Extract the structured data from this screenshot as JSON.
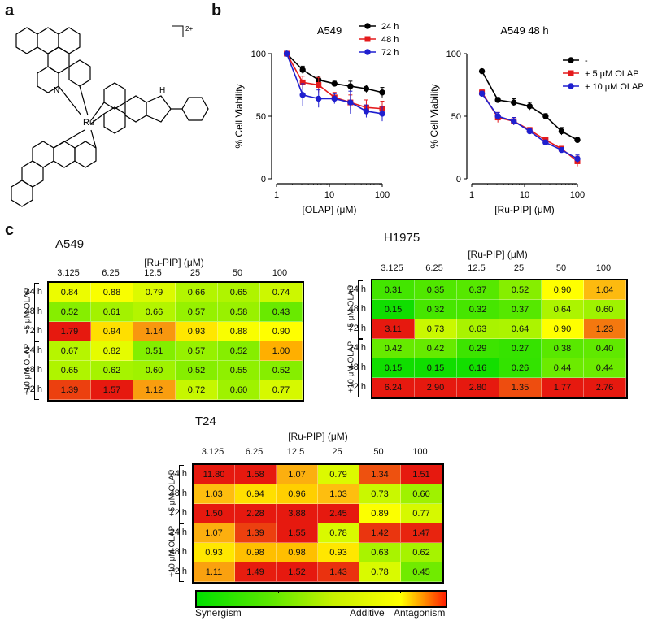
{
  "panel_labels": {
    "a": "a",
    "b": "b",
    "c": "c"
  },
  "structure": {
    "charge": "2+",
    "ru": "Ru",
    "nh": "H",
    "n": "N"
  },
  "colorbar": {
    "left": "Synergism",
    "mid": "Additive",
    "right": "Antagonism"
  },
  "chart_data": [
    {
      "type": "line",
      "title": "A549",
      "xlabel": "[OLAP] (μM)",
      "ylabel": "% Cell Viability",
      "xscale": "log",
      "xlim": [
        1,
        100
      ],
      "ylim": [
        0,
        100
      ],
      "xticks": [
        "1",
        "10",
        "100"
      ],
      "yticks": [
        "0",
        "50",
        "100"
      ],
      "x": [
        1.5625,
        3.125,
        6.25,
        12.5,
        25,
        50,
        100
      ],
      "legend_position": "top-right",
      "series": [
        {
          "name": "24 h",
          "color": "#000000",
          "marker": "circle",
          "values": [
            100,
            87,
            79,
            76,
            74,
            72,
            69
          ],
          "err": [
            1,
            3,
            3,
            2,
            4,
            3,
            4
          ]
        },
        {
          "name": "48 h",
          "color": "#e41a1c",
          "marker": "square",
          "values": [
            100,
            77,
            75,
            65,
            61,
            57,
            56
          ],
          "err": [
            1,
            5,
            6,
            4,
            6,
            6,
            6
          ]
        },
        {
          "name": "72 h",
          "color": "#1f1fcf",
          "marker": "circle",
          "values": [
            100,
            67,
            64,
            64,
            61,
            54,
            52
          ],
          "err": [
            1,
            9,
            7,
            4,
            9,
            5,
            6
          ]
        }
      ]
    },
    {
      "type": "line",
      "title": "A549 48 h",
      "xlabel": "[Ru-PIP] (μM)",
      "ylabel": "% Cell Viability",
      "xscale": "log",
      "xlim": [
        1,
        100
      ],
      "ylim": [
        0,
        100
      ],
      "xticks": [
        "1",
        "10",
        "100"
      ],
      "yticks": [
        "0",
        "50",
        "100"
      ],
      "x": [
        1.5625,
        3.125,
        6.25,
        12.5,
        25,
        50,
        100
      ],
      "legend_position": "top-right",
      "series": [
        {
          "name": "-",
          "color": "#000000",
          "marker": "circle",
          "values": [
            86,
            63,
            61,
            58,
            50,
            38,
            31
          ],
          "err": [
            1,
            2,
            3,
            3,
            2,
            3,
            2
          ]
        },
        {
          "name": "+ 5 μM OLAP",
          "color": "#e41a1c",
          "marker": "square",
          "values": [
            69,
            49,
            46,
            39,
            31,
            24,
            14
          ],
          "err": [
            2,
            4,
            3,
            2,
            2,
            2,
            4
          ]
        },
        {
          "name": "+ 10 μM OLAP",
          "color": "#1f1fcf",
          "marker": "circle",
          "values": [
            68,
            50,
            46,
            38,
            29,
            23,
            16
          ],
          "err": [
            2,
            3,
            3,
            2,
            2,
            2,
            3
          ]
        }
      ]
    },
    {
      "type": "heatmap",
      "title": "A549",
      "xlabel": "[Ru-PIP] (μM)",
      "columns": [
        "3.125",
        "6.25",
        "12.5",
        "25",
        "50",
        "100"
      ],
      "rows": [
        "24 h",
        "48 h",
        "72 h",
        "24 h",
        "48 h",
        "72 h"
      ],
      "groups": [
        "+5 μM OLAP",
        "+10 μM OLAP"
      ],
      "values": [
        [
          0.84,
          0.88,
          0.79,
          0.66,
          0.65,
          0.74
        ],
        [
          0.52,
          0.61,
          0.66,
          0.57,
          0.58,
          0.43
        ],
        [
          1.79,
          0.94,
          1.14,
          0.93,
          0.88,
          0.9
        ],
        [
          0.67,
          0.82,
          0.51,
          0.57,
          0.52,
          1.0
        ],
        [
          0.65,
          0.62,
          0.6,
          0.52,
          0.55,
          0.52
        ],
        [
          1.39,
          1.57,
          1.12,
          0.72,
          0.6,
          0.77
        ]
      ],
      "labels": [
        [
          "0.84",
          "0.88",
          "0.79",
          "0.66",
          "0.65",
          "0.74"
        ],
        [
          "0.52",
          "0.61",
          "0.66",
          "0.57",
          "0.58",
          "0.43"
        ],
        [
          "1.79",
          "0.94",
          "1.14",
          "0.93",
          "0.88",
          "0.90"
        ],
        [
          "0.67",
          "0.82",
          "0.51",
          "0.57",
          "0.52",
          "1.00"
        ],
        [
          "0.65",
          "0.62",
          "0.60",
          "0.52",
          "0.55",
          "0.52"
        ],
        [
          "1.39",
          "1.57",
          "1.12",
          "0.72",
          "0.60",
          "0.77"
        ]
      ]
    },
    {
      "type": "heatmap",
      "title": "H1975",
      "xlabel": "[Ru-PIP] (μM)",
      "columns": [
        "3.125",
        "6.25",
        "12.5",
        "25",
        "50",
        "100"
      ],
      "rows": [
        "24 h",
        "48 h",
        "72 h",
        "24 h",
        "48 h",
        "72 h"
      ],
      "groups": [
        "+5 μM OLAP",
        "+10 μM OLAP"
      ],
      "values": [
        [
          0.31,
          0.35,
          0.37,
          0.52,
          0.9,
          1.04
        ],
        [
          0.15,
          0.32,
          0.32,
          0.37,
          0.64,
          0.6
        ],
        [
          3.11,
          0.73,
          0.63,
          0.64,
          0.9,
          1.23
        ],
        [
          0.42,
          0.42,
          0.29,
          0.27,
          0.38,
          0.4
        ],
        [
          0.15,
          0.15,
          0.16,
          0.26,
          0.44,
          0.44
        ],
        [
          6.24,
          2.9,
          2.8,
          1.35,
          1.77,
          2.76
        ]
      ],
      "labels": [
        [
          "0.31",
          "0.35",
          "0.37",
          "0.52",
          "0.90",
          "1.04"
        ],
        [
          "0.15",
          "0.32",
          "0.32",
          "0.37",
          "0.64",
          "0.60"
        ],
        [
          "3.11",
          "0.73",
          "0.63",
          "0.64",
          "0.90",
          "1.23"
        ],
        [
          "0.42",
          "0.42",
          "0.29",
          "0.27",
          "0.38",
          "0.40"
        ],
        [
          "0.15",
          "0.15",
          "0.16",
          "0.26",
          "0.44",
          "0.44"
        ],
        [
          "6.24",
          "2.90",
          "2.80",
          "1.35",
          "1.77",
          "2.76"
        ]
      ]
    },
    {
      "type": "heatmap",
      "title": "T24",
      "xlabel": "[Ru-PIP] (μM)",
      "columns": [
        "3.125",
        "6.25",
        "12.5",
        "25",
        "50",
        "100"
      ],
      "rows": [
        "24 h",
        "48 h",
        "72 h",
        "24 h",
        "48 h",
        "72 h"
      ],
      "groups": [
        "+5 μM OLAP",
        "+10 μM OLAP"
      ],
      "values": [
        [
          11.8,
          1.58,
          1.07,
          0.79,
          1.34,
          1.51
        ],
        [
          1.03,
          0.94,
          0.96,
          1.03,
          0.73,
          0.6
        ],
        [
          1.5,
          2.28,
          3.88,
          2.45,
          0.89,
          0.77
        ],
        [
          1.07,
          1.39,
          1.55,
          0.78,
          1.42,
          1.47
        ],
        [
          0.93,
          0.98,
          0.98,
          0.93,
          0.63,
          0.62
        ],
        [
          1.11,
          1.49,
          1.52,
          1.43,
          0.78,
          0.45
        ]
      ],
      "labels": [
        [
          "11.80",
          "1.58",
          "1.07",
          "0.79",
          "1.34",
          "1.51"
        ],
        [
          "1.03",
          "0.94",
          "0.96",
          "1.03",
          "0.73",
          "0.60"
        ],
        [
          "1.50",
          "2.28",
          "3.88",
          "2.45",
          "0.89",
          "0.77"
        ],
        [
          "1.07",
          "1.39",
          "1.55",
          "0.78",
          "1.42",
          "1.47"
        ],
        [
          "0.93",
          "0.98",
          "0.98",
          "0.93",
          "0.63",
          "0.62"
        ],
        [
          "1.11",
          "1.49",
          "1.52",
          "1.43",
          "0.78",
          "0.45"
        ]
      ]
    }
  ]
}
